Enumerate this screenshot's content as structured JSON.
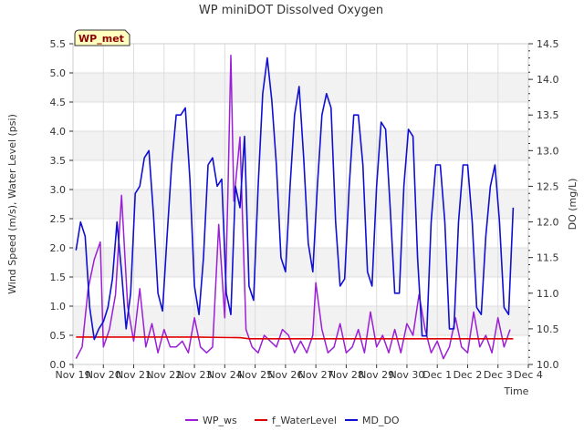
{
  "chart_data": {
    "type": "line",
    "title": "WP miniDOT Dissolved Oxygen",
    "site_label": "WP_met",
    "xlabel": "Time",
    "ylabel_left": "Wind Speed (m/s), Water Level (psi)",
    "ylabel_right": "DO (mg/L)",
    "x_unit": "days since Nov 19",
    "xlim": [
      0,
      15
    ],
    "ylim_left": [
      0,
      5.5
    ],
    "ylim_right": [
      10.0,
      14.5
    ],
    "x_ticks": [
      {
        "x": 0,
        "label": "Nov 19"
      },
      {
        "x": 1,
        "label": "Nov 20"
      },
      {
        "x": 2,
        "label": "Nov 21"
      },
      {
        "x": 3,
        "label": "Nov 22"
      },
      {
        "x": 4,
        "label": "Nov 23"
      },
      {
        "x": 5,
        "label": "Nov 24"
      },
      {
        "x": 6,
        "label": "Nov 25"
      },
      {
        "x": 7,
        "label": "Nov 26"
      },
      {
        "x": 8,
        "label": "Nov 27"
      },
      {
        "x": 9,
        "label": "Nov 28"
      },
      {
        "x": 10,
        "label": "Nov 29"
      },
      {
        "x": 11,
        "label": "Nov 30"
      },
      {
        "x": 12,
        "label": "Dec 1"
      },
      {
        "x": 13,
        "label": "Dec 2"
      },
      {
        "x": 14,
        "label": "Dec 3"
      },
      {
        "x": 15,
        "label": "Dec 4"
      }
    ],
    "left_ticks": [
      0.0,
      0.5,
      1.0,
      1.5,
      2.0,
      2.5,
      3.0,
      3.5,
      4.0,
      4.5,
      5.0,
      5.5
    ],
    "left_tick_labels": [
      "0.0",
      "0.5",
      "1.0",
      "1.5",
      "2.0",
      "2.5",
      "3.0",
      "3.5",
      "4.0",
      "4.5",
      "5.0",
      "5.5"
    ],
    "right_ticks": [
      10.0,
      10.5,
      11.0,
      11.5,
      12.0,
      12.5,
      13.0,
      13.5,
      14.0,
      14.5
    ],
    "right_tick_labels": [
      "10.0",
      "10.5",
      "11.0",
      "11.5",
      "12.0",
      "12.5",
      "13.0",
      "13.5",
      "14.0",
      "14.5"
    ],
    "grid": true,
    "legend_position": "bottom",
    "series": [
      {
        "name": "WP_ws",
        "axis": "left",
        "color": "#9b1fd6",
        "x": [
          0.1,
          0.3,
          0.5,
          0.7,
          0.9,
          1.0,
          1.2,
          1.4,
          1.6,
          1.8,
          2.0,
          2.2,
          2.4,
          2.6,
          2.8,
          3.0,
          3.2,
          3.4,
          3.6,
          3.8,
          4.0,
          4.2,
          4.4,
          4.6,
          4.8,
          5.0,
          5.1,
          5.2,
          5.3,
          5.5,
          5.7,
          5.9,
          6.1,
          6.3,
          6.5,
          6.7,
          6.9,
          7.1,
          7.3,
          7.5,
          7.7,
          7.9,
          8.0,
          8.2,
          8.4,
          8.6,
          8.8,
          9.0,
          9.2,
          9.4,
          9.6,
          9.8,
          10.0,
          10.2,
          10.4,
          10.6,
          10.8,
          11.0,
          11.2,
          11.4,
          11.6,
          11.8,
          12.0,
          12.2,
          12.4,
          12.6,
          12.8,
          13.0,
          13.2,
          13.4,
          13.6,
          13.8,
          14.0,
          14.2,
          14.4
        ],
        "y": [
          0.1,
          0.3,
          1.3,
          1.8,
          2.1,
          0.3,
          0.6,
          1.2,
          2.9,
          1.0,
          0.4,
          1.3,
          0.3,
          0.7,
          0.2,
          0.6,
          0.3,
          0.3,
          0.4,
          0.2,
          0.8,
          0.3,
          0.2,
          0.3,
          2.4,
          0.8,
          2.9,
          5.3,
          2.8,
          3.9,
          0.6,
          0.3,
          0.2,
          0.5,
          0.4,
          0.3,
          0.6,
          0.5,
          0.2,
          0.4,
          0.2,
          0.5,
          1.4,
          0.6,
          0.2,
          0.3,
          0.7,
          0.2,
          0.3,
          0.6,
          0.2,
          0.9,
          0.3,
          0.5,
          0.2,
          0.6,
          0.2,
          0.7,
          0.5,
          1.2,
          0.6,
          0.2,
          0.4,
          0.1,
          0.3,
          0.8,
          0.3,
          0.2,
          0.9,
          0.3,
          0.5,
          0.2,
          0.8,
          0.3,
          0.6
        ]
      },
      {
        "name": "f_WaterLevel",
        "axis": "left",
        "color": "#e00000",
        "x": [
          0.1,
          2.0,
          4.0,
          5.5,
          5.8,
          8.0,
          10.0,
          12.0,
          14.5
        ],
        "y": [
          0.47,
          0.47,
          0.47,
          0.46,
          0.44,
          0.44,
          0.44,
          0.44,
          0.44
        ]
      },
      {
        "name": "MD_DO",
        "axis": "right",
        "color": "#1010d0",
        "x": [
          0.1,
          0.25,
          0.4,
          0.55,
          0.7,
          0.85,
          1.0,
          1.15,
          1.3,
          1.45,
          1.6,
          1.75,
          1.9,
          2.05,
          2.2,
          2.35,
          2.5,
          2.65,
          2.8,
          2.95,
          3.1,
          3.25,
          3.4,
          3.55,
          3.7,
          3.85,
          4.0,
          4.15,
          4.3,
          4.45,
          4.6,
          4.75,
          4.9,
          5.05,
          5.2,
          5.35,
          5.5,
          5.65,
          5.8,
          5.95,
          6.1,
          6.25,
          6.4,
          6.55,
          6.7,
          6.85,
          7.0,
          7.15,
          7.3,
          7.45,
          7.6,
          7.75,
          7.9,
          8.05,
          8.2,
          8.35,
          8.5,
          8.65,
          8.8,
          8.95,
          9.1,
          9.25,
          9.4,
          9.55,
          9.7,
          9.85,
          10.0,
          10.15,
          10.3,
          10.45,
          10.6,
          10.75,
          10.9,
          11.05,
          11.2,
          11.35,
          11.5,
          11.65,
          11.8,
          11.95,
          12.1,
          12.25,
          12.4,
          12.55,
          12.7,
          12.85,
          13.0,
          13.15,
          13.3,
          13.45,
          13.6,
          13.75,
          13.9,
          14.05,
          14.2,
          14.35,
          14.5
        ],
        "y": [
          11.6,
          12.0,
          11.8,
          10.8,
          10.35,
          10.5,
          10.6,
          10.8,
          11.2,
          12.0,
          11.3,
          10.5,
          11.0,
          12.4,
          12.5,
          12.9,
          13.0,
          12.1,
          11.0,
          10.75,
          11.8,
          12.8,
          13.5,
          13.5,
          13.6,
          12.6,
          11.1,
          10.7,
          11.5,
          12.8,
          12.9,
          12.5,
          12.6,
          11.0,
          10.7,
          12.5,
          12.2,
          13.2,
          11.1,
          10.9,
          12.5,
          13.8,
          14.3,
          13.7,
          12.8,
          11.5,
          11.3,
          12.5,
          13.5,
          13.9,
          12.9,
          11.7,
          11.3,
          12.5,
          13.5,
          13.8,
          13.6,
          12.0,
          11.1,
          11.2,
          12.5,
          13.5,
          13.5,
          12.8,
          11.3,
          11.1,
          12.5,
          13.4,
          13.3,
          12.2,
          11.0,
          11.0,
          12.5,
          13.3,
          13.2,
          11.5,
          10.4,
          10.4,
          12.0,
          12.8,
          12.8,
          12.0,
          10.5,
          10.5,
          12.0,
          12.8,
          12.8,
          12.0,
          10.8,
          10.7,
          11.8,
          12.5,
          12.8,
          12.0,
          10.8,
          10.7,
          12.2
        ]
      }
    ]
  }
}
